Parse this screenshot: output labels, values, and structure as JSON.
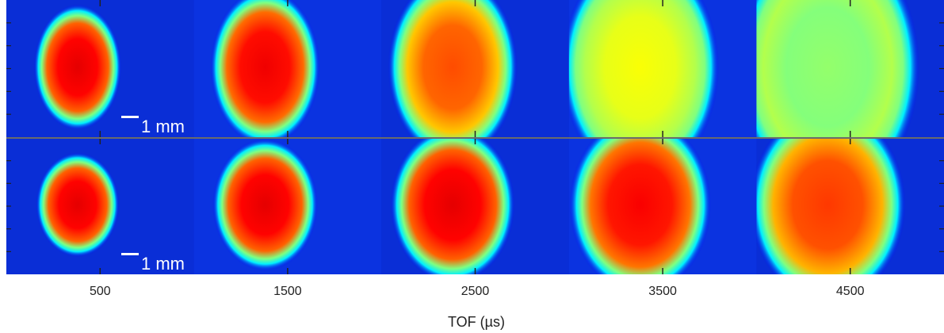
{
  "figure": {
    "xlabel": "TOF (µs)",
    "x_ticks": [
      "500",
      "1500",
      "2500",
      "3500",
      "4500"
    ],
    "scale_bar_label": "1 mm",
    "rows": [
      {
        "panels": [
          {
            "tof": "500",
            "size": 1.0,
            "peak": 0.9
          },
          {
            "tof": "1500",
            "size": 1.25,
            "peak": 0.89
          },
          {
            "tof": "2500",
            "size": 1.48,
            "peak": 0.8
          },
          {
            "tof": "3500",
            "size": 1.8,
            "peak": 0.62
          },
          {
            "tof": "4500",
            "size": 2.1,
            "peak": 0.52
          }
        ]
      },
      {
        "panels": [
          {
            "tof": "500",
            "size": 0.95,
            "peak": 0.9
          },
          {
            "tof": "1500",
            "size": 1.2,
            "peak": 0.9
          },
          {
            "tof": "2500",
            "size": 1.42,
            "peak": 0.9
          },
          {
            "tof": "3500",
            "size": 1.62,
            "peak": 0.88
          },
          {
            "tof": "4500",
            "size": 1.78,
            "peak": 0.82
          }
        ]
      }
    ],
    "colors": {
      "background": "#0a2fd8",
      "separator": "#6b6b6b",
      "tick": "#222222",
      "scale_bar": "#ffffff"
    }
  }
}
